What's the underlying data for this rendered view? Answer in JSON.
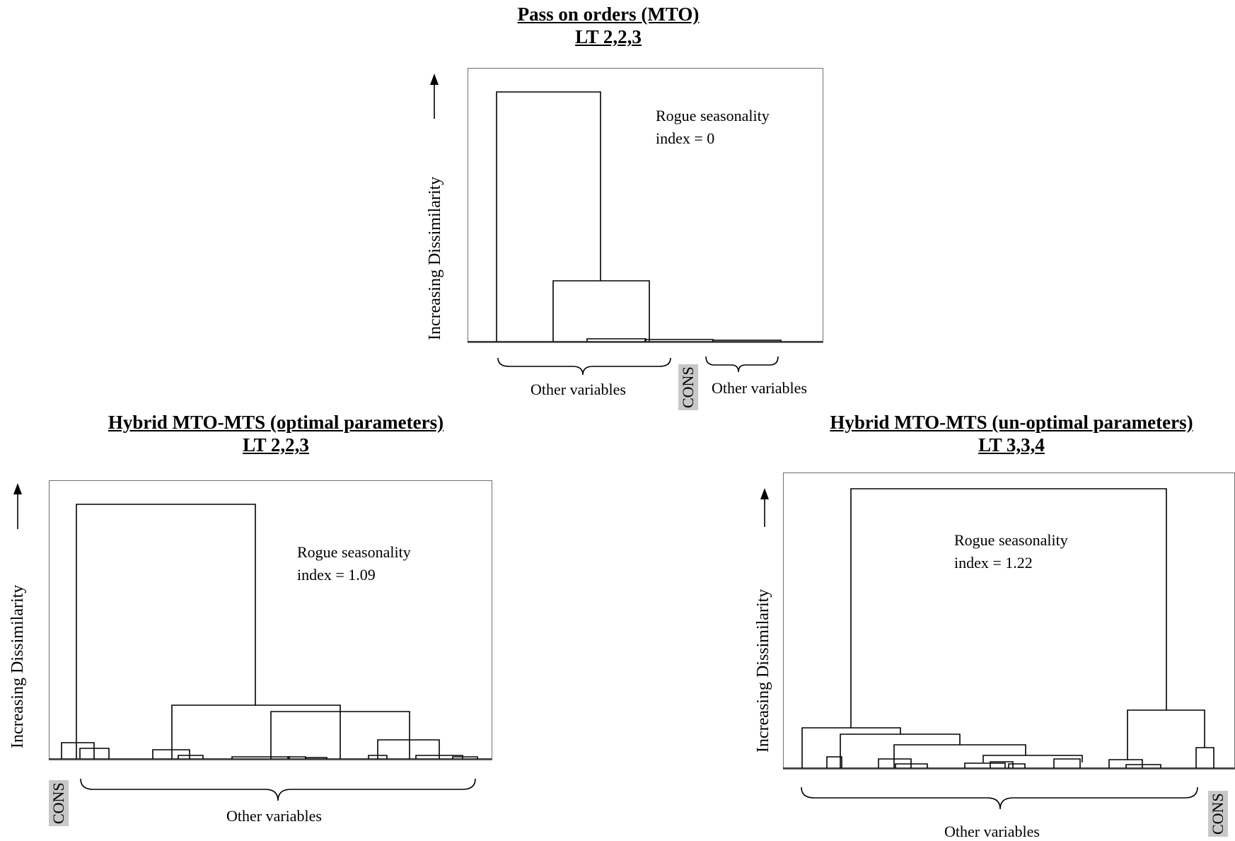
{
  "panels": [
    {
      "title_line1": "Pass on orders (MTO)",
      "title_line2": "LT 2,2,3",
      "ylabel": "Increasing Dissimilarity",
      "note_line1": "Rogue seasonality",
      "note_line2": "index = 0",
      "group_a": "Other variables",
      "cons": "CONS",
      "group_b": "Other variables"
    },
    {
      "title_line1": "Hybrid MTO-MTS (optimal parameters)",
      "title_line2": "LT 2,2,3",
      "ylabel": "Increasing Dissimilarity",
      "note_line1": "Rogue seasonality",
      "note_line2": "index = 1.09",
      "cons": "CONS",
      "group_a": "Other variables"
    },
    {
      "title_line1": "Hybrid MTO-MTS (un-optimal parameters)",
      "title_line2": "LT 3,3,4",
      "ylabel": "Increasing Dissimilarity",
      "note_line1": "Rogue seasonality",
      "note_line2": "index = 1.22",
      "group_a": "Other variables",
      "cons": "CONS"
    }
  ]
}
